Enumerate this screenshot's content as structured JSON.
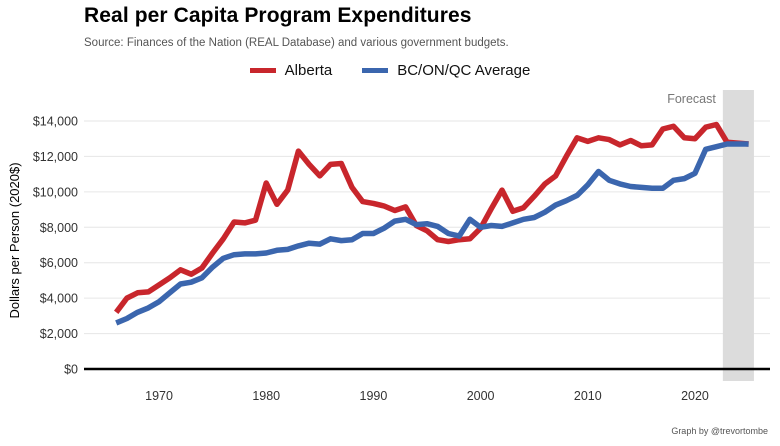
{
  "header": {
    "title": "Real per Capita Program Expenditures",
    "subtitle": "Source: Finances of the Nation (REAL Database) and various government budgets."
  },
  "caption": "Graph by @trevortombe",
  "colors": {
    "alberta": "#c8262c",
    "average": "#3b66ae",
    "forecast_band": "#dcdcdc"
  },
  "chart_data": {
    "type": "line",
    "title": "Real per Capita Program Expenditures",
    "subtitle": "Source: Finances of the Nation (REAL Database) and various government budgets.",
    "xlabel": "",
    "ylabel": "Dollars per Person (2020$)",
    "xlim": [
      1963,
      2027
    ],
    "ylim": [
      0,
      14000
    ],
    "x_ticks": [
      1970,
      1980,
      1990,
      2000,
      2010,
      2020
    ],
    "x_tick_labels": [
      "1970",
      "1980",
      "1990",
      "2000",
      "2010",
      "2020"
    ],
    "y_ticks": [
      0,
      2000,
      4000,
      6000,
      8000,
      10000,
      12000,
      14000
    ],
    "y_tick_labels": [
      "$0",
      "$2,000",
      "$4,000",
      "$6,000",
      "$8,000",
      "$10,000",
      "$12,000",
      "$14,000"
    ],
    "grid": "horizontal",
    "legend_position": "top",
    "forecast": {
      "label": "Forecast",
      "x_start": 2022.6,
      "x_end": 2025
    },
    "x": [
      1966,
      1967,
      1968,
      1969,
      1970,
      1971,
      1972,
      1973,
      1974,
      1975,
      1976,
      1977,
      1978,
      1979,
      1980,
      1981,
      1982,
      1983,
      1984,
      1985,
      1986,
      1987,
      1988,
      1989,
      1990,
      1991,
      1992,
      1993,
      1994,
      1995,
      1996,
      1997,
      1998,
      1999,
      2000,
      2001,
      2002,
      2003,
      2004,
      2005,
      2006,
      2007,
      2008,
      2009,
      2010,
      2011,
      2012,
      2013,
      2014,
      2015,
      2016,
      2017,
      2018,
      2019,
      2020,
      2021,
      2022,
      2023,
      2024,
      2025
    ],
    "series": [
      {
        "name": "Alberta",
        "values": [
          3200,
          4000,
          4300,
          4350,
          4750,
          5150,
          5600,
          5350,
          5700,
          6550,
          7350,
          8300,
          8250,
          8400,
          10500,
          9300,
          10100,
          12300,
          11550,
          10900,
          11550,
          11600,
          10250,
          9450,
          9350,
          9200,
          8950,
          9150,
          8100,
          7800,
          7300,
          7200,
          7300,
          7350,
          7950,
          9050,
          10100,
          8900,
          9100,
          9750,
          10450,
          10900,
          12000,
          13050,
          12850,
          13050,
          12950,
          12650,
          12900,
          12600,
          12650,
          13550,
          13700,
          13050,
          13000,
          13650,
          13800,
          12800,
          12750,
          12700
        ]
      },
      {
        "name": "BC/ON/QC Average",
        "values": [
          2600,
          2850,
          3200,
          3450,
          3800,
          4300,
          4800,
          4900,
          5150,
          5750,
          6250,
          6450,
          6500,
          6500,
          6550,
          6700,
          6750,
          6950,
          7100,
          7050,
          7350,
          7250,
          7300,
          7650,
          7650,
          7950,
          8350,
          8450,
          8150,
          8200,
          8050,
          7650,
          7500,
          8450,
          8000,
          8100,
          8050,
          8250,
          8450,
          8550,
          8850,
          9250,
          9500,
          9800,
          10400,
          11150,
          10650,
          10450,
          10300,
          10250,
          10200,
          10200,
          10650,
          10750,
          11050,
          12400,
          12550,
          12700,
          12700,
          12700
        ]
      }
    ]
  }
}
